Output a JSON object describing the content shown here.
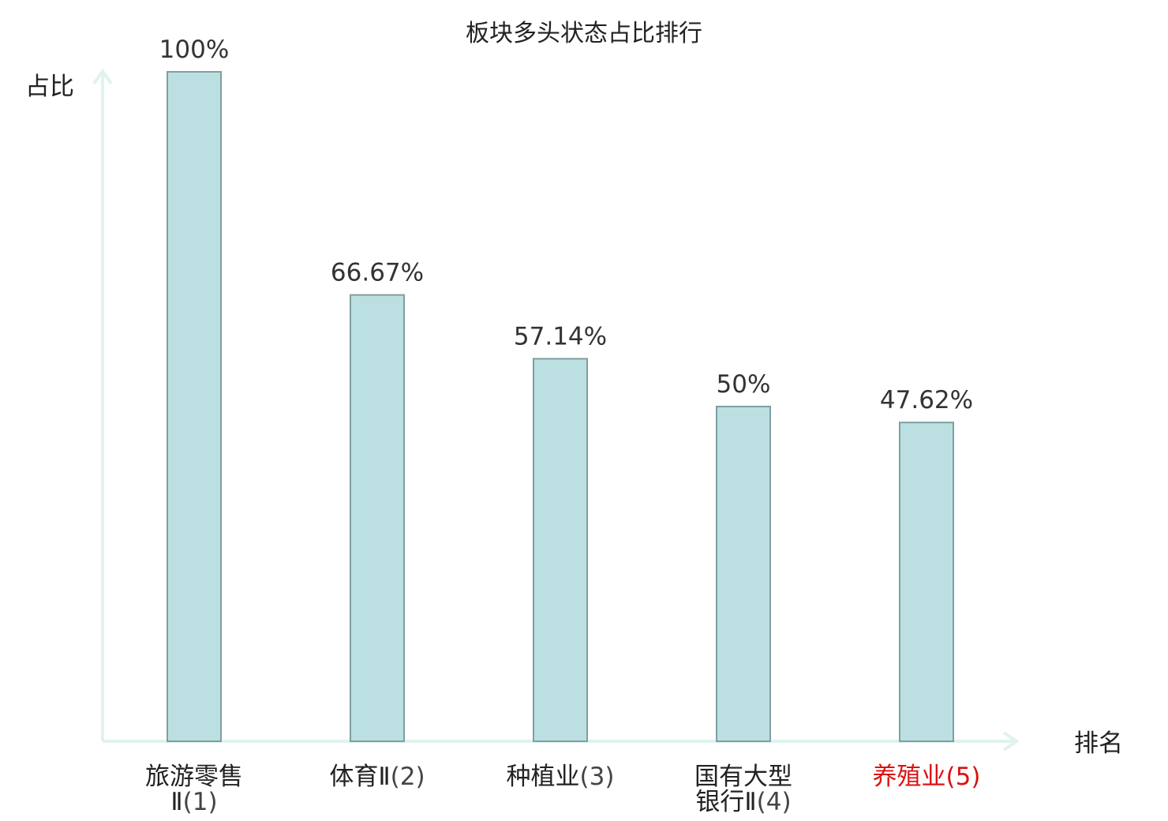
{
  "chart_data": {
    "type": "bar",
    "title": "板块多头状态占比排行",
    "ylabel": "占比",
    "xlabel": "排名",
    "ylim": [
      0,
      100
    ],
    "grid": false,
    "categories": [
      {
        "lines": [
          [
            "旅游零售",
            ""
          ],
          [
            "Ⅱ",
            "(1)"
          ]
        ],
        "value": 100,
        "label": "100%",
        "highlight": false
      },
      {
        "lines": [
          [
            "体育Ⅱ",
            "(2)"
          ]
        ],
        "value": 66.67,
        "label": "66.67%",
        "highlight": false
      },
      {
        "lines": [
          [
            "种植业",
            "(3)"
          ]
        ],
        "value": 57.14,
        "label": "57.14%",
        "highlight": false
      },
      {
        "lines": [
          [
            "国有大型",
            ""
          ],
          [
            "银行Ⅱ",
            "(4)"
          ]
        ],
        "value": 50,
        "label": "50%",
        "highlight": false
      },
      {
        "lines": [
          [
            "养殖业",
            "(5)"
          ]
        ],
        "value": 47.62,
        "label": "47.62%",
        "highlight": true
      }
    ],
    "colors": {
      "bar_fill": "#bce0e1",
      "bar_stroke": "#7f9fa0",
      "axis": "#e0f2ef",
      "highlight_text": "#dd1111",
      "text": "#222222"
    }
  }
}
